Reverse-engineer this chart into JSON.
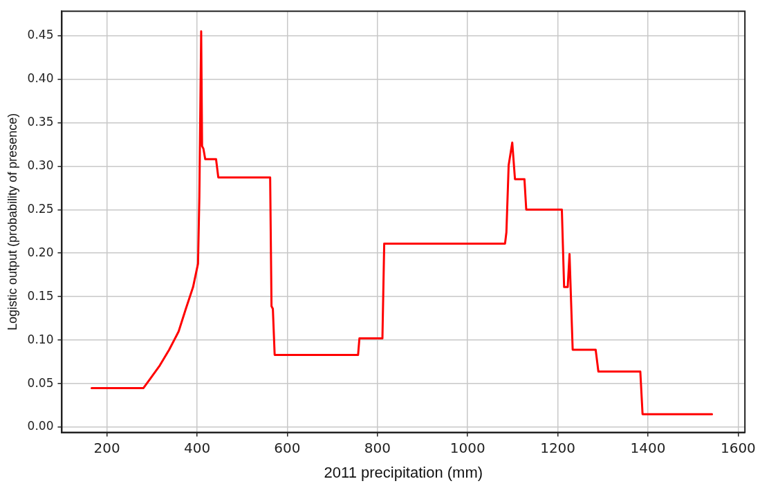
{
  "chart_data": {
    "type": "line",
    "xlabel": "2011 precipitation (mm)",
    "ylabel": "Logistic output (probability of presence)",
    "x": [
      166,
      281,
      295,
      316,
      338,
      359,
      375,
      391,
      402,
      405,
      409,
      411,
      414,
      418,
      442,
      447,
      562,
      565,
      568,
      572,
      757,
      760,
      811,
      815,
      1083,
      1086,
      1091,
      1099,
      1105,
      1126,
      1130,
      1209,
      1214,
      1222,
      1226,
      1233,
      1284,
      1290,
      1383,
      1388,
      1542
    ],
    "series": [
      {
        "color": "#ff0000",
        "values": [
          0.045,
          0.045,
          0.055,
          0.07,
          0.089,
          0.11,
          0.136,
          0.161,
          0.188,
          0.265,
          0.455,
          0.323,
          0.32,
          0.308,
          0.308,
          0.287,
          0.287,
          0.139,
          0.136,
          0.083,
          0.083,
          0.102,
          0.102,
          0.211,
          0.211,
          0.224,
          0.301,
          0.327,
          0.285,
          0.285,
          0.25,
          0.25,
          0.161,
          0.161,
          0.199,
          0.089,
          0.089,
          0.064,
          0.064,
          0.015,
          0.015
        ]
      }
    ],
    "xlim": [
      100,
      1615
    ],
    "xticks": [
      200,
      400,
      600,
      800,
      1000,
      1200,
      1400,
      1600
    ],
    "ylim": [
      -0.006,
      0.478
    ],
    "yticks": [
      {
        "value": 0,
        "label": "0.00"
      },
      {
        "value": 0.05,
        "label": "0.05"
      },
      {
        "value": 0.1,
        "label": "0.10"
      },
      {
        "value": 0.15,
        "label": "0.15"
      },
      {
        "value": 0.2,
        "label": "0.20"
      },
      {
        "value": 0.25,
        "label": "0.25"
      },
      {
        "value": 0.3,
        "label": "0.30"
      },
      {
        "value": 0.35,
        "label": "0.35"
      },
      {
        "value": 0.4,
        "label": "0.40"
      },
      {
        "value": 0.45,
        "label": "0.45"
      }
    ],
    "grid": true,
    "marker": "none",
    "line_style": "solid"
  }
}
